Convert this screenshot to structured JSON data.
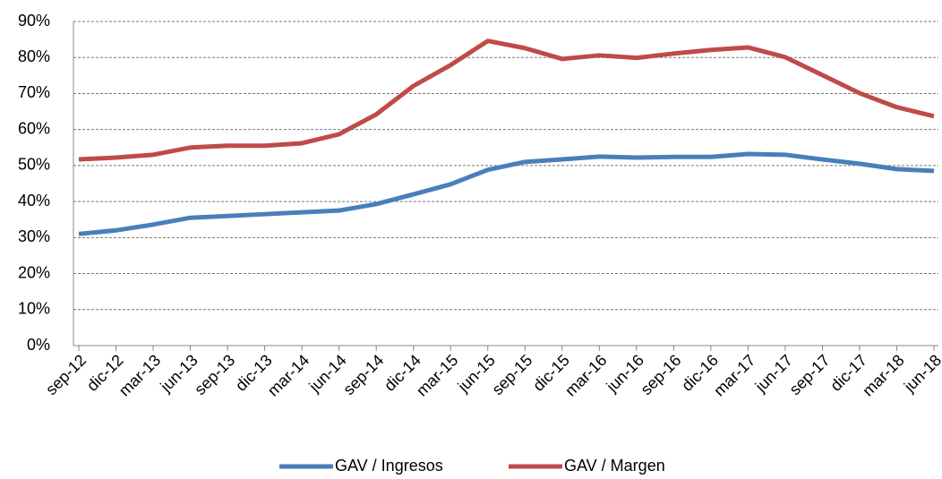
{
  "chart_data": {
    "type": "line",
    "categories": [
      "sep-12",
      "dic-12",
      "mar-13",
      "jun-13",
      "sep-13",
      "dic-13",
      "mar-14",
      "jun-14",
      "sep-14",
      "dic-14",
      "mar-15",
      "jun-15",
      "sep-15",
      "dic-15",
      "mar-16",
      "jun-16",
      "sep-16",
      "dic-16",
      "mar-17",
      "jun-17",
      "sep-17",
      "dic-17",
      "mar-18",
      "jun-18"
    ],
    "series": [
      {
        "name": "GAV / Ingresos",
        "color": "#4a7ebb",
        "values": [
          31,
          32,
          33.6,
          35.5,
          36,
          36.5,
          37,
          37.5,
          39.3,
          42,
          44.8,
          48.8,
          51,
          51.7,
          52.5,
          52.2,
          52.4,
          52.4,
          53.2,
          53,
          51.7,
          50.5,
          49,
          48.5
        ]
      },
      {
        "name": "GAV / Margen",
        "color": "#be4b48",
        "values": [
          51.7,
          52.2,
          53,
          55,
          55.5,
          55.5,
          56.2,
          58.7,
          64.2,
          72.1,
          77.9,
          84.6,
          82.6,
          79.6,
          80.6,
          79.9,
          81.1,
          82.1,
          82.8,
          80.1,
          75.1,
          70.1,
          66.2,
          63.7
        ]
      }
    ],
    "ylim": [
      0,
      90
    ],
    "yticks": [
      {
        "value": 0,
        "label": "0%"
      },
      {
        "value": 10,
        "label": "10%"
      },
      {
        "value": 20,
        "label": "20%"
      },
      {
        "value": 30,
        "label": "30%"
      },
      {
        "value": 40,
        "label": "40%"
      },
      {
        "value": 50,
        "label": "50%"
      },
      {
        "value": 60,
        "label": "60%"
      },
      {
        "value": 70,
        "label": "70%"
      },
      {
        "value": 80,
        "label": "80%"
      },
      {
        "value": 90,
        "label": "90%"
      }
    ],
    "grid": true,
    "legend": "bottom"
  }
}
